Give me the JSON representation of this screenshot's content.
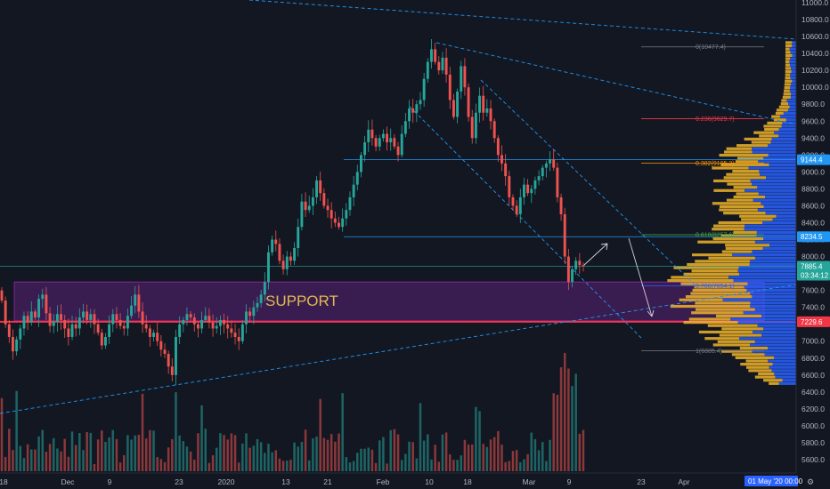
{
  "chart_data": {
    "type": "candlestick",
    "y_axis_ticks": [
      "11000.0",
      "10800.0",
      "10600.0",
      "10400.0",
      "10200.0",
      "10000.0",
      "9800.0",
      "9600.0",
      "9400.0",
      "9200.0",
      "9000.0",
      "8800.0",
      "8600.0",
      "8400.0",
      "8200.0",
      "8000.0",
      "7800.0",
      "7600.0",
      "7400.0",
      "7200.0",
      "7000.0",
      "6800.0",
      "6600.0",
      "6400.0",
      "6200.0",
      "6000.0",
      "5800.0",
      "5600.0"
    ],
    "y_axis_values": [
      11000,
      10800,
      10600,
      10400,
      10200,
      10000,
      9800,
      9600,
      9400,
      9200,
      9000,
      8800,
      8600,
      8400,
      8200,
      8000,
      7800,
      7600,
      7400,
      7200,
      7000,
      6800,
      6600,
      6400,
      6200,
      6000,
      5800,
      5600
    ],
    "x_axis_ticks": [
      "18",
      "Dec",
      "9",
      "23",
      "2020",
      "13",
      "21",
      "Feb",
      "10",
      "18",
      "Mar",
      "9",
      "23",
      "Apr"
    ],
    "fib_levels": [
      {
        "label": "0(10477.4)",
        "price": 10477.4,
        "color": "#787b86"
      },
      {
        "label": "0.236(9629.7)",
        "price": 9629.7,
        "color": "#f23645"
      },
      {
        "label": "0.382(9105.3)",
        "price": 9105.3,
        "color": "#ff9800"
      },
      {
        "label": "0.618(8257.6)",
        "price": 8257.6,
        "color": "#4caf50"
      },
      {
        "label": "0.786(7654.1)",
        "price": 7654.1,
        "color": "#2962ff"
      },
      {
        "label": "1(6885.4)",
        "price": 6885.4,
        "color": "#787b86"
      }
    ],
    "price_badges": [
      {
        "label": "9144.4",
        "price": 9144.4,
        "color": "#2196f3"
      },
      {
        "label": "8234.5",
        "price": 8234.5,
        "color": "#2196f3"
      },
      {
        "label": "7885.4",
        "price": 7885.4,
        "color": "#26a69a"
      },
      {
        "label": "03:34:12",
        "price": 7780,
        "color": "#26a69a"
      },
      {
        "label": "7229.6",
        "price": 7229.6,
        "color": "#f23645"
      }
    ],
    "zone": {
      "label": "SUPPORT",
      "top": 7700,
      "bottom": 7240
    },
    "close": [
      7480,
      7200,
      7050,
      6880,
      7020,
      7150,
      7300,
      7220,
      7350,
      7280,
      7500,
      7550,
      7330,
      7180,
      7230,
      7320,
      7250,
      7150,
      7050,
      7200,
      7150,
      7280,
      7350,
      7250,
      7320,
      7200,
      7100,
      6950,
      7050,
      7200,
      7320,
      7250,
      7180,
      7150,
      7300,
      7420,
      7550,
      7350,
      7200,
      7150,
      7050,
      7100,
      7000,
      6900,
      6850,
      6700,
      6600,
      7050,
      7200,
      7250,
      7320,
      7280,
      7200,
      7150,
      7250,
      7300,
      7220,
      7150,
      7180,
      7250,
      7200,
      7150,
      7100,
      7050,
      7000,
      7200,
      7350,
      7300,
      7400,
      7450,
      7550,
      7700,
      8050,
      8200,
      8150,
      7950,
      7850,
      8000,
      7950,
      8100,
      8350,
      8650,
      8550,
      8600,
      8700,
      8900,
      8750,
      8600,
      8550,
      8450,
      8400,
      8350,
      8450,
      8550,
      8700,
      8850,
      9000,
      9200,
      9350,
      9500,
      9400,
      9300,
      9400,
      9450,
      9350,
      9400,
      9300,
      9200,
      9450,
      9600,
      9750,
      9700,
      9800,
      9850,
      10100,
      10300,
      10450,
      10300,
      10200,
      10350,
      10150,
      9850,
      9650,
      9950,
      10250,
      10000,
      9650,
      9400,
      9700,
      9900,
      9700,
      9750,
      9600,
      9400,
      9200,
      9100,
      8950,
      8700,
      8600,
      8500,
      8700,
      8850,
      8750,
      8800,
      8900,
      8950,
      9050,
      9100,
      9150,
      9050,
      8700,
      8500,
      8000,
      7700,
      7850,
      7950,
      7900,
      7885
    ],
    "volume_scale": "relative"
  },
  "overlay": {
    "support_label": "SUPPORT",
    "date_badge": "01 May '20   00:00",
    "timezone_corner": "⚙"
  },
  "colors": {
    "background": "#131722",
    "up": "#26a69a",
    "down": "#ef5350",
    "volume_profile_up": "#2962ff",
    "volume_profile_down": "#f0b429",
    "zone": "#5b2277",
    "red_line": "#f23645",
    "trend_line": "#2196f3"
  }
}
